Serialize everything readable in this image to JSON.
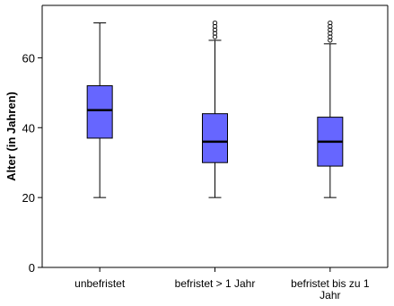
{
  "chart_data": {
    "type": "boxplot",
    "ylabel": "Alter (in Jahren)",
    "xlabel": "",
    "ylim": [
      0,
      75
    ],
    "yticks": [
      0,
      20,
      40,
      60
    ],
    "categories": [
      "unbefristet",
      "befristet > 1 Jahr",
      "befristet bis zu 1 Jahr"
    ],
    "category_label_lines": [
      [
        "unbefristet"
      ],
      [
        "befristet > 1 Jahr"
      ],
      [
        "befristet bis zu 1",
        "Jahr"
      ]
    ],
    "boxes": [
      {
        "whisker_low": 20,
        "q1": 37,
        "median": 45,
        "q3": 52,
        "whisker_high": 70,
        "outliers": []
      },
      {
        "whisker_low": 20,
        "q1": 30,
        "median": 36,
        "q3": 44,
        "whisker_high": 65,
        "outliers": [
          66,
          67,
          68,
          69,
          70
        ]
      },
      {
        "whisker_low": 20,
        "q1": 29,
        "median": 36,
        "q3": 43,
        "whisker_high": 64,
        "outliers": [
          65,
          66,
          67,
          68,
          69,
          70
        ]
      }
    ],
    "box_color": "#6666ff",
    "grid": false,
    "legend": "none"
  }
}
